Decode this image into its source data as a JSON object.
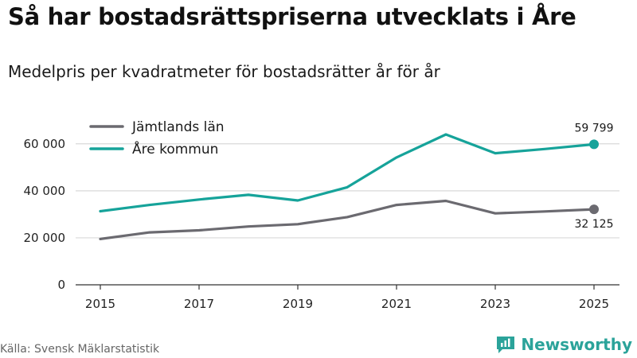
{
  "title": "Så har bostadsrättspriserna utvecklats i Åre",
  "subtitle": "Medelpris per kvadratmeter för bostadsrätter år för år",
  "source": "Källa: Svensk Mäklarstatistik",
  "brand": "Newsworthy",
  "colors": {
    "jamtland": "#6b6a70",
    "are": "#16a39a",
    "brand": "#2ba39a",
    "grid": "#d9d9d9"
  },
  "chart_data": {
    "type": "line",
    "title": "Så har bostadsrättspriserna utvecklats i Åre",
    "subtitle": "Medelpris per kvadratmeter för bostadsrätter år för år",
    "xlabel": "",
    "ylabel": "",
    "x": [
      2015,
      2016,
      2017,
      2018,
      2019,
      2020,
      2021,
      2022,
      2023,
      2024,
      2025
    ],
    "xticks": [
      2015,
      2017,
      2019,
      2021,
      2023,
      2025
    ],
    "xtick_labels": [
      "2015",
      "2017",
      "2019",
      "2021",
      "2023",
      "2025"
    ],
    "yticks": [
      0,
      20000,
      40000,
      60000
    ],
    "ytick_labels": [
      "0",
      "20 000",
      "40 000",
      "60 000"
    ],
    "xlim": [
      2015,
      2025
    ],
    "ylim": [
      0,
      65000
    ],
    "grid": "horizontal",
    "legend_position": "top-left",
    "series": [
      {
        "name": "Jämtlands län",
        "color_key": "jamtland",
        "values": [
          19500,
          22300,
          23200,
          24800,
          25800,
          28800,
          34000,
          35700,
          30400,
          31200,
          32125
        ],
        "end_label": "32 125",
        "end_label_position": "below"
      },
      {
        "name": "Åre kommun",
        "color_key": "are",
        "values": [
          31300,
          34000,
          36300,
          38300,
          35900,
          41500,
          54200,
          64000,
          56000,
          57800,
          59799
        ],
        "end_label": "59 799",
        "end_label_position": "above"
      }
    ]
  }
}
